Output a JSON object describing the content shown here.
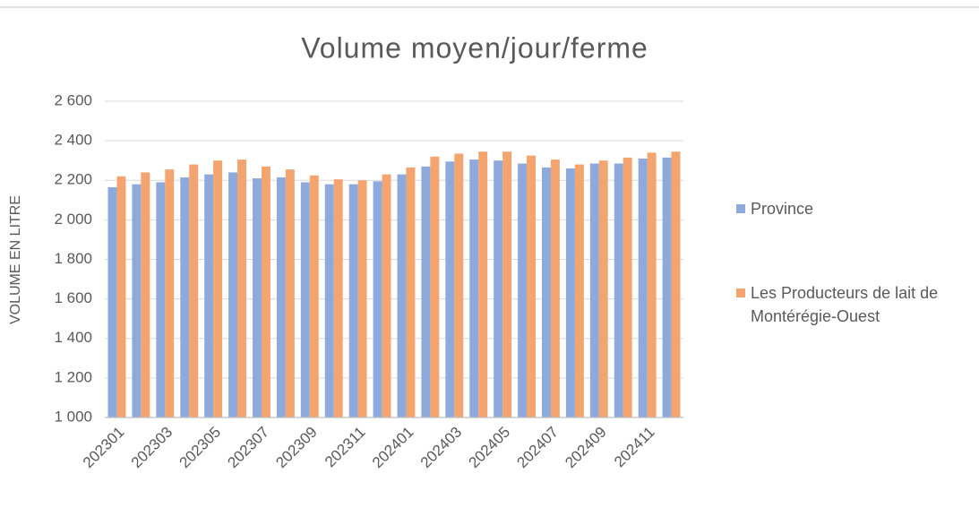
{
  "chart_data": {
    "type": "bar",
    "title": "Volume moyen/jour/ferme",
    "y_label": "VOLUME EN LITRE",
    "categories": [
      "202301",
      null,
      "202303",
      null,
      "202305",
      null,
      "202307",
      null,
      "202309",
      null,
      "202311",
      null,
      "202401",
      null,
      "202403",
      null,
      "202405",
      null,
      "202407",
      null,
      "202409",
      null,
      "202411",
      null
    ],
    "series": [
      {
        "name": "Province",
        "color": "#8eaadc",
        "values": [
          2165,
          2180,
          2190,
          2215,
          2230,
          2240,
          2210,
          2215,
          2190,
          2180,
          2180,
          2195,
          2230,
          2270,
          2295,
          2305,
          2300,
          2285,
          2265,
          2260,
          2285,
          2285,
          2310,
          2315
        ]
      },
      {
        "name": "Les Producteurs de lait de Montérégie-Ouest",
        "color": "#f4a56f",
        "values": [
          2220,
          2240,
          2255,
          2280,
          2300,
          2305,
          2270,
          2255,
          2225,
          2205,
          2200,
          2230,
          2265,
          2320,
          2335,
          2345,
          2345,
          2325,
          2305,
          2280,
          2300,
          2315,
          2340,
          2345
        ]
      }
    ],
    "ylim": [
      1000,
      2600
    ],
    "yticks": [
      {
        "value": 1000,
        "label": "1 000"
      },
      {
        "value": 1200,
        "label": "1 200"
      },
      {
        "value": 1400,
        "label": "1 400"
      },
      {
        "value": 1600,
        "label": "1 600"
      },
      {
        "value": 1800,
        "label": "1 800"
      },
      {
        "value": 2000,
        "label": "2 000"
      },
      {
        "value": 2200,
        "label": "2 200"
      },
      {
        "value": 2400,
        "label": "2 400"
      },
      {
        "value": 2600,
        "label": "2 600"
      }
    ],
    "grid": true,
    "legend": "right"
  }
}
